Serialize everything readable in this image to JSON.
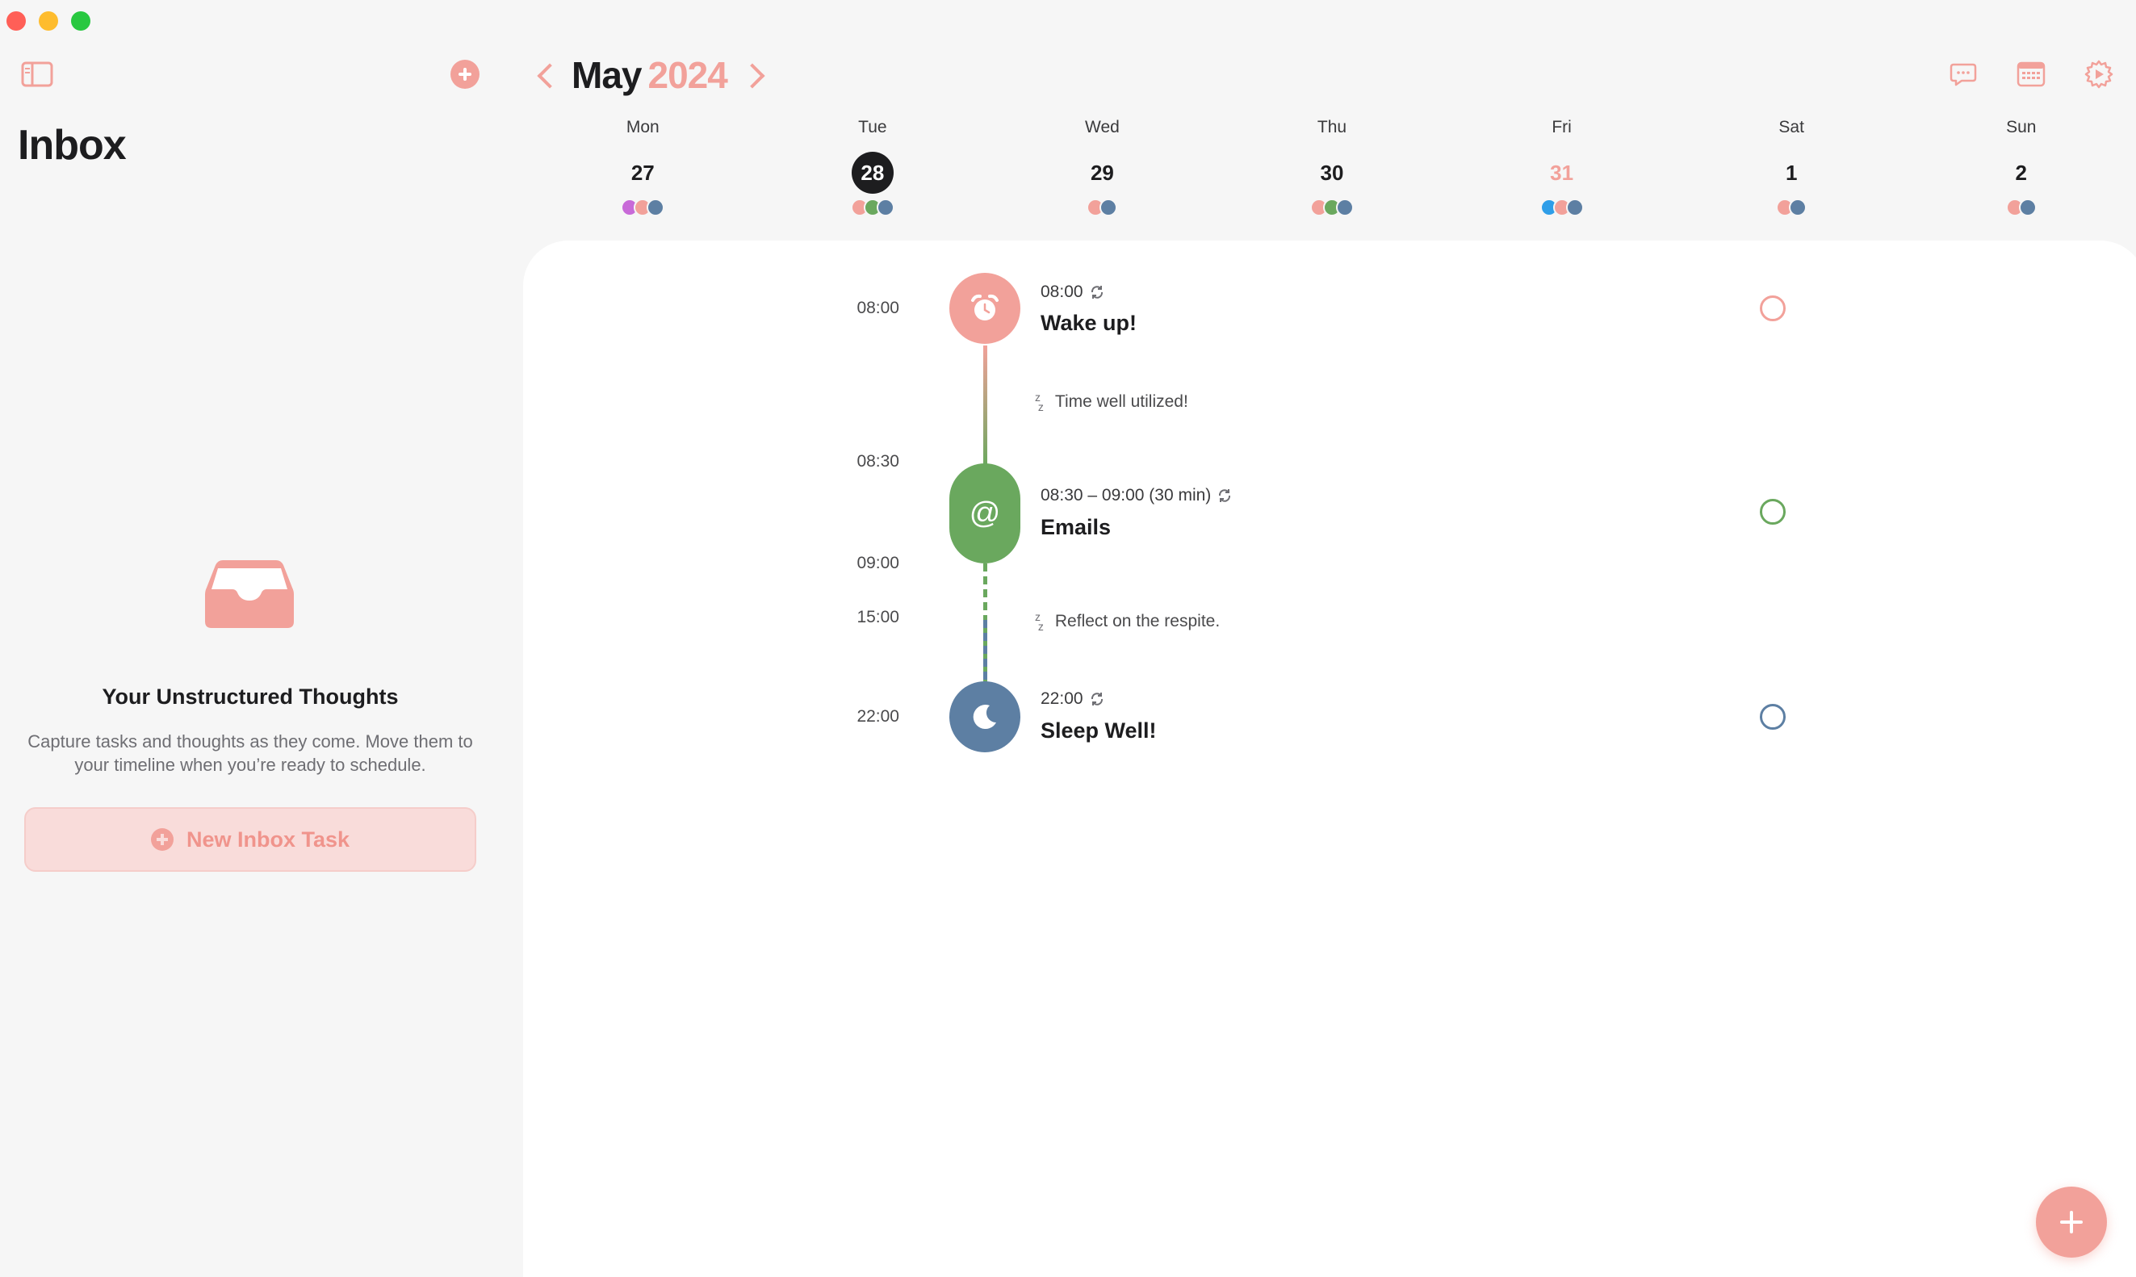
{
  "sidebar": {
    "title": "Inbox",
    "empty_title": "Your Unstructured Thoughts",
    "empty_description": "Capture tasks and thoughts as they come. Move them to your timeline when you’re ready to schedule.",
    "new_task_label": "New Inbox Task"
  },
  "header": {
    "month": "May",
    "year": "2024"
  },
  "week": [
    {
      "name": "Mon",
      "num": "27"
    },
    {
      "name": "Tue",
      "num": "28"
    },
    {
      "name": "Wed",
      "num": "29"
    },
    {
      "name": "Thu",
      "num": "30"
    },
    {
      "name": "Fri",
      "num": "31"
    },
    {
      "name": "Sat",
      "num": "1"
    },
    {
      "name": "Sun",
      "num": "2"
    }
  ],
  "timeline": {
    "labels": [
      "08:00",
      "08:30",
      "09:00",
      "15:00",
      "22:00"
    ],
    "events": [
      {
        "meta": "08:00",
        "title": "Wake up!",
        "icon": "alarm-clock-icon",
        "color": "#f2a19a"
      },
      {
        "meta": "08:30 – 09:00 (30 min)",
        "title": "Emails",
        "icon": "at-sign-icon",
        "color": "#6aa85e"
      },
      {
        "meta": "22:00",
        "title": "Sleep Well!",
        "icon": "moon-icon",
        "color": "#5d7fa3"
      }
    ],
    "gaps": [
      "Time well utilized!",
      "Reflect on the respite."
    ]
  },
  "colors": {
    "accent": "#f2a19a",
    "green": "#6aa85e",
    "blue": "#5d7fa3"
  }
}
